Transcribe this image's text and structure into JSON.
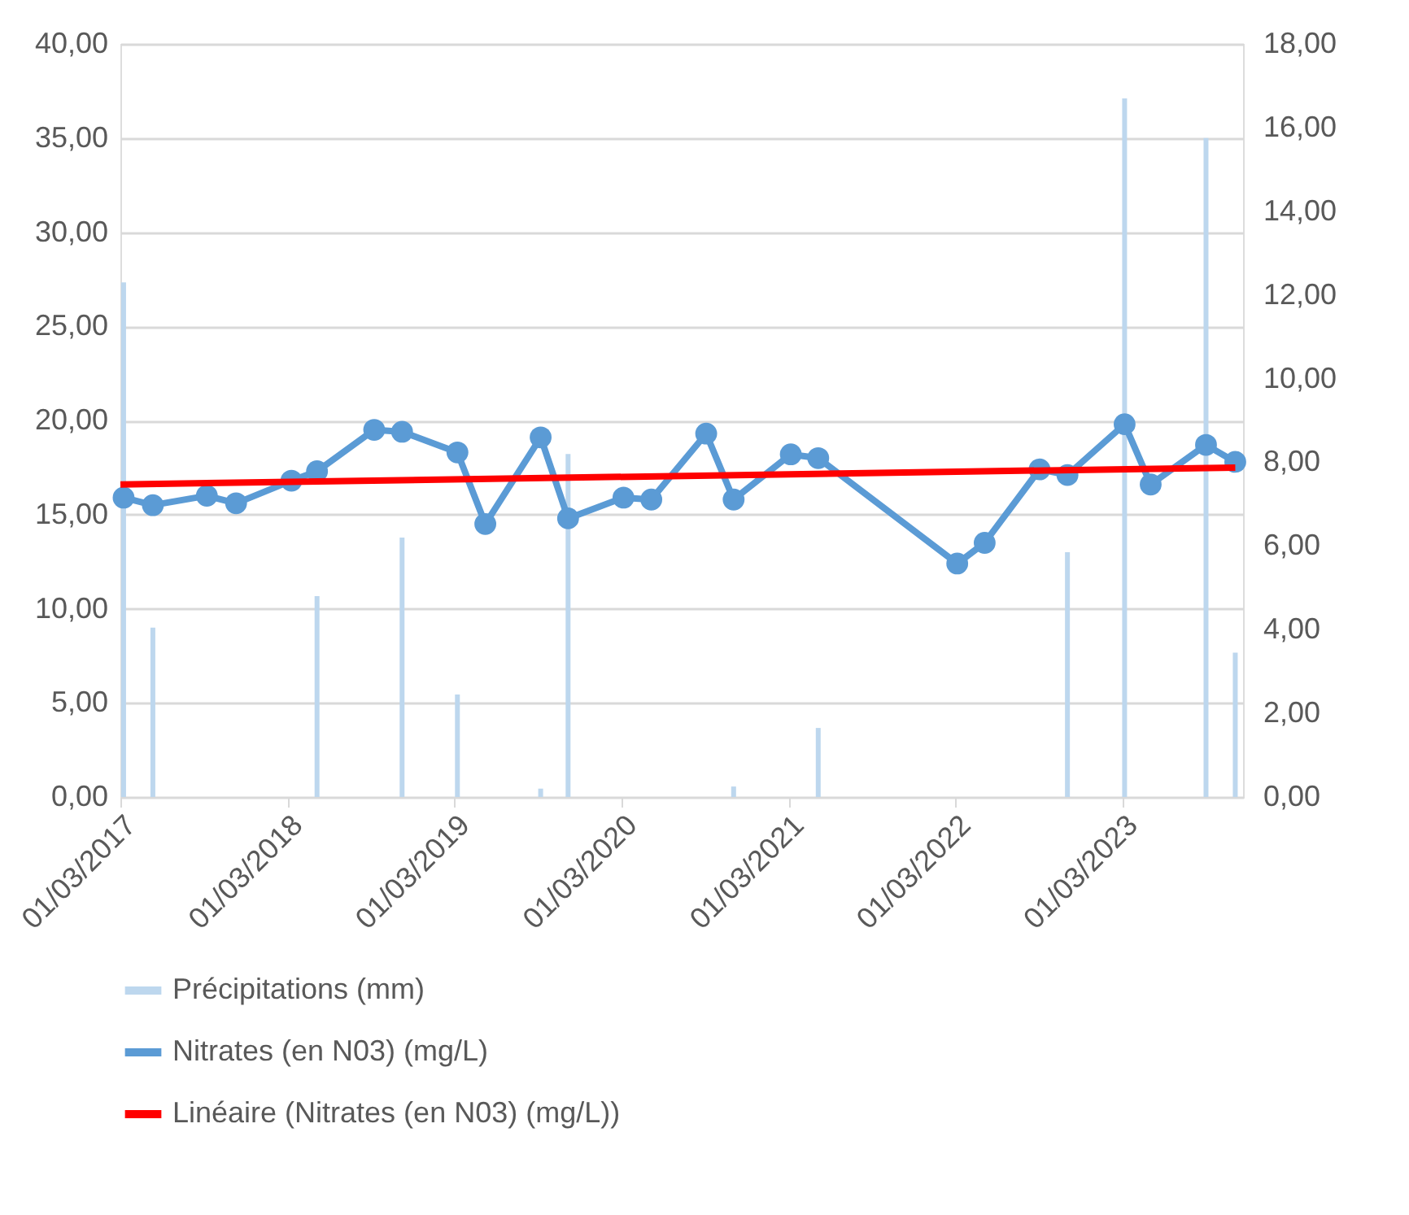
{
  "chart_data": {
    "type": "line",
    "x": [
      "2017-03-08",
      "2017-05-11",
      "2017-09-06",
      "2017-11-09",
      "2018-03-10",
      "2018-05-05",
      "2018-09-07",
      "2018-11-07",
      "2019-03-08",
      "2019-05-08",
      "2019-09-06",
      "2019-11-05",
      "2020-03-05",
      "2020-05-05",
      "2020-09-02",
      "2020-11-01",
      "2021-03-06",
      "2021-05-05",
      "2022-03-05",
      "2022-05-04",
      "2022-09-01",
      "2022-11-01",
      "2023-03-06",
      "2023-05-02",
      "2023-08-31",
      "2023-11-03"
    ],
    "series": [
      {
        "name": "Précipitations (mm)",
        "type": "bar",
        "axis": "y2",
        "color": "#bdd7ee",
        "values": [
          12.3,
          4.05,
          null,
          null,
          null,
          4.8,
          null,
          6.2,
          2.45,
          null,
          0.2,
          8.2,
          null,
          null,
          null,
          0.25,
          null,
          1.65,
          null,
          null,
          null,
          5.85,
          16.7,
          null,
          15.75,
          3.45
        ]
      },
      {
        "name": "Nitrates (en N03) (mg/L)",
        "marker": "circle",
        "color": "#5b9bd5",
        "values": [
          15.9,
          15.5,
          16.0,
          15.6,
          16.8,
          17.3,
          19.5,
          19.4,
          18.3,
          14.5,
          19.1,
          14.8,
          15.9,
          15.8,
          19.3,
          15.8,
          18.2,
          18.0,
          12.4,
          13.5,
          17.4,
          17.1,
          19.8,
          16.6,
          18.7,
          17.8
        ]
      },
      {
        "name": "Linéaire (Nitrates (en N03) (mg/L))",
        "color": "#ff0000",
        "x": [
          "2017-03-01",
          "2023-11-03"
        ],
        "values": [
          16.6,
          17.5
        ]
      }
    ],
    "xlim": [
      "2017-03-01",
      "2023-11-20"
    ],
    "xticks": [
      {
        "value": "2017-03-01",
        "label": "01/03/2017"
      },
      {
        "value": "2018-03-01",
        "label": "01/03/2018"
      },
      {
        "value": "2019-03-01",
        "label": "01/03/2019"
      },
      {
        "value": "2020-03-01",
        "label": "01/03/2020"
      },
      {
        "value": "2021-03-01",
        "label": "01/03/2021"
      },
      {
        "value": "2022-03-01",
        "label": "01/03/2022"
      },
      {
        "value": "2023-03-01",
        "label": "01/03/2023"
      }
    ],
    "ylim": [
      0,
      40
    ],
    "yticks": [
      {
        "value": 0,
        "label": "0,00"
      },
      {
        "value": 5,
        "label": "5,00"
      },
      {
        "value": 10,
        "label": "10,00"
      },
      {
        "value": 15,
        "label": "15,00"
      },
      {
        "value": 20,
        "label": "20,00"
      },
      {
        "value": 25,
        "label": "25,00"
      },
      {
        "value": 30,
        "label": "30,00"
      },
      {
        "value": 35,
        "label": "35,00"
      },
      {
        "value": 40,
        "label": "40,00"
      }
    ],
    "y2lim": [
      0,
      18
    ],
    "y2ticks": [
      {
        "value": 0,
        "label": "0,00"
      },
      {
        "value": 2,
        "label": "2,00"
      },
      {
        "value": 4,
        "label": "4,00"
      },
      {
        "value": 6,
        "label": "6,00"
      },
      {
        "value": 8,
        "label": "8,00"
      },
      {
        "value": 10,
        "label": "10,00"
      },
      {
        "value": 12,
        "label": "12,00"
      },
      {
        "value": 14,
        "label": "14,00"
      },
      {
        "value": 16,
        "label": "16,00"
      },
      {
        "value": 18,
        "label": "18,00"
      }
    ],
    "grid": "y",
    "legend": "bottom"
  }
}
